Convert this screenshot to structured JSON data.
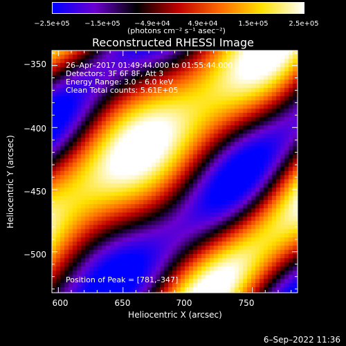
{
  "colorbar": {
    "ticks": [
      "−2.5e+05",
      "−1.5e+05",
      "−4.9e+04",
      "4.9e+04",
      "1.5e+05",
      "2.5e+05"
    ],
    "unit": "(photons cm⁻² s⁻¹ asec⁻²)",
    "colors": [
      "#0000ff",
      "#6b00d0",
      "#000000",
      "#c00000",
      "#ff6a00",
      "#ffe100",
      "#ffffff"
    ]
  },
  "chart_data": {
    "type": "heatmap",
    "title": "Reconstructed RHESSI Image",
    "xlabel": "Heliocentric X (arcsec)",
    "ylabel": "Heliocentric Y (arcsec)",
    "xlim": [
      595,
      785
    ],
    "ylim": [
      -533,
      -338
    ],
    "xticks": [
      600,
      650,
      700,
      750
    ],
    "yticks": [
      -350,
      -400,
      -450,
      -500
    ],
    "zlim": [
      -250000,
      250000
    ],
    "peak": [
      781,
      -347
    ]
  },
  "annotations": {
    "line1": "26–Apr–2017 01:49:44.000 to 01:55:44.000",
    "line2": "Detectors: 3F 6F 8F, Att 3",
    "line3": "Energy Range: 3.0 – 6.0 keV",
    "line4": "Clean    Total counts: 5.61E+05",
    "peak": "Position of Peak = [781,–347]"
  },
  "footer": {
    "date": "6–Sep–2022 11:36"
  }
}
